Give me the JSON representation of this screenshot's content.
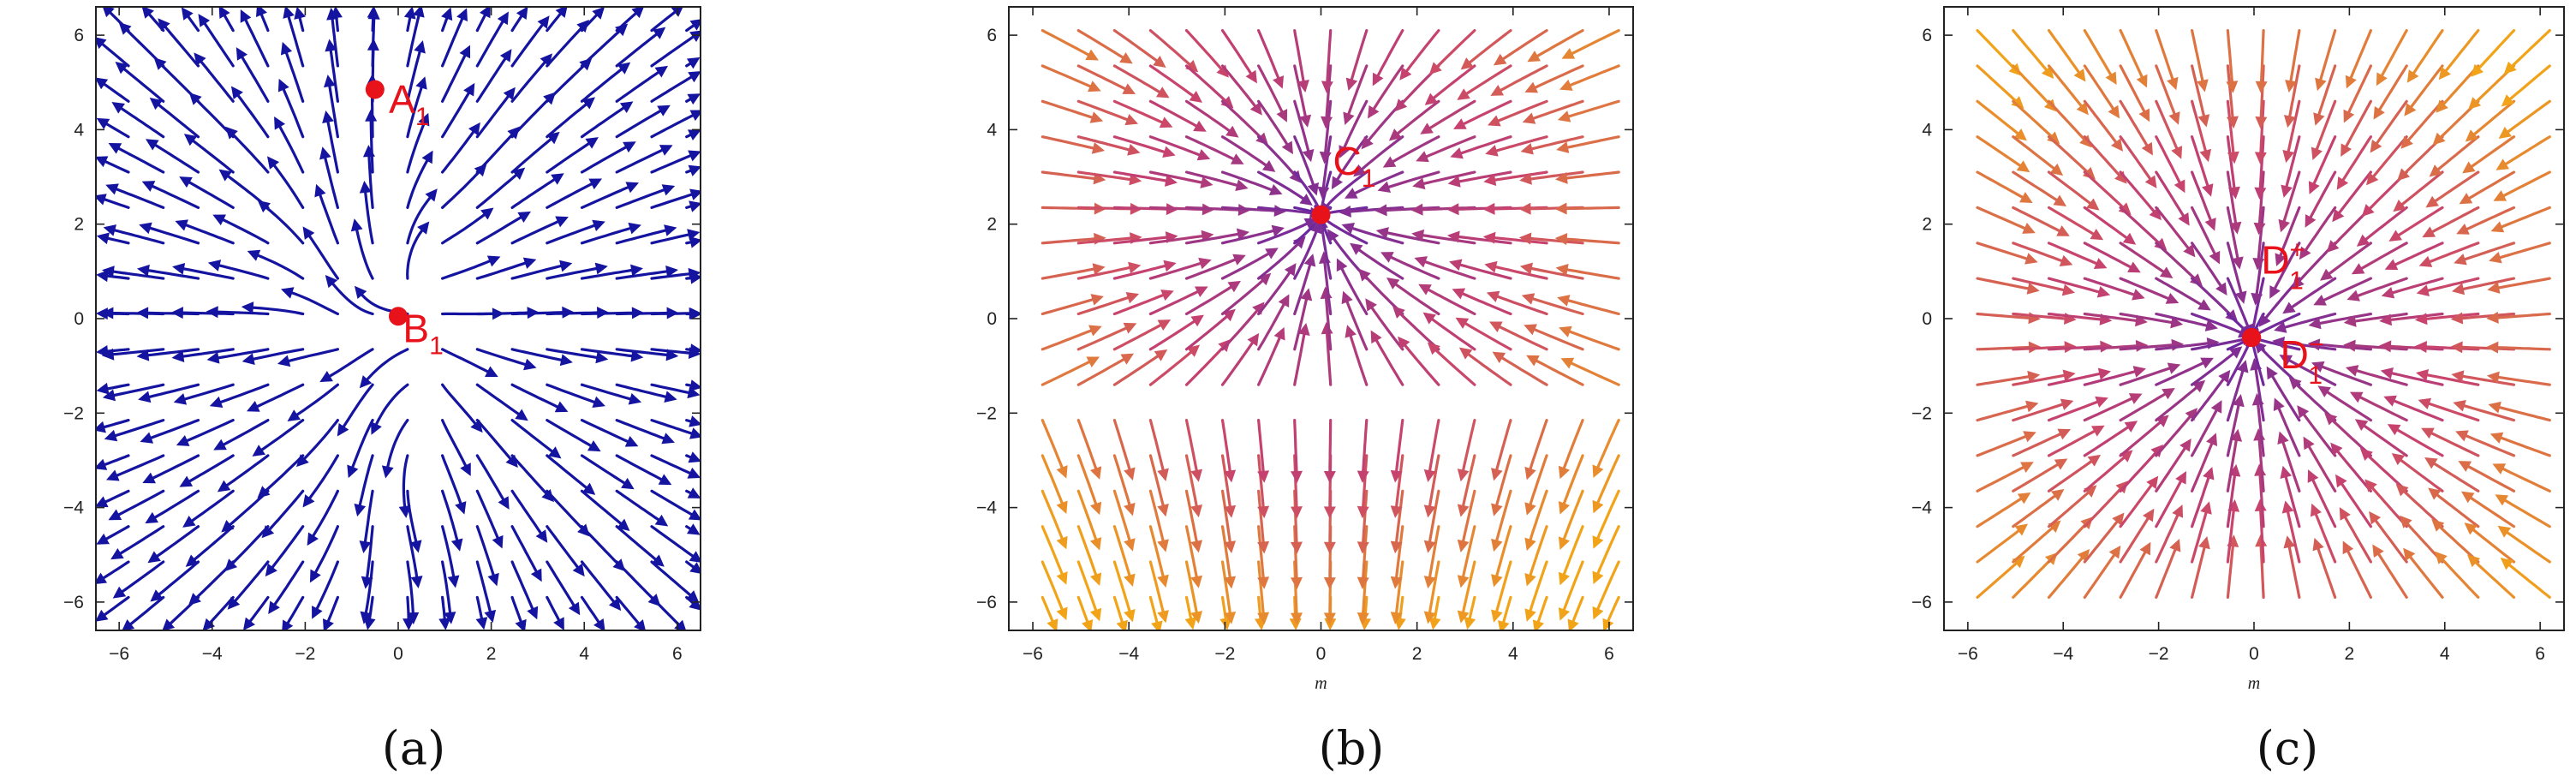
{
  "chart_data": [
    {
      "type": "streamplot",
      "caption": "(a)",
      "xlim": [
        -6.5,
        6.5
      ],
      "ylim": [
        -6.6,
        6.6
      ],
      "xticks": [
        -6,
        -4,
        -2,
        0,
        2,
        4,
        6
      ],
      "yticks": [
        -6,
        -4,
        -2,
        0,
        2,
        4,
        6
      ],
      "xlabel": "",
      "ylabel": "",
      "stream_color": "#1414a0",
      "color_mode": "solid",
      "field": "a",
      "points": [
        {
          "label": "A",
          "sub": "1",
          "sup": "",
          "x": -0.5,
          "y": 4.85,
          "label_dx": 0.3,
          "label_dy": -0.5
        },
        {
          "label": "B",
          "sub": "1",
          "sup": "",
          "x": 0.0,
          "y": 0.05,
          "label_dx": 0.1,
          "label_dy": -0.55
        }
      ]
    },
    {
      "type": "streamplot",
      "caption": "(b)",
      "xlim": [
        -6.5,
        6.5
      ],
      "ylim": [
        -6.6,
        6.6
      ],
      "xticks": [
        -6,
        -4,
        -2,
        0,
        2,
        4,
        6
      ],
      "yticks": [
        -6,
        -4,
        -2,
        0,
        2,
        4,
        6
      ],
      "xlabel": "m",
      "ylabel": "",
      "color_mode": "gradient",
      "field": "b",
      "points": [
        {
          "label": "C",
          "sub": "1",
          "sup": "",
          "x": 0.0,
          "y": 2.2,
          "label_dx": 0.25,
          "label_dy": 0.85
        }
      ]
    },
    {
      "type": "streamplot",
      "caption": "(c)",
      "xlim": [
        -6.5,
        6.5
      ],
      "ylim": [
        -6.6,
        6.6
      ],
      "xticks": [
        -6,
        -4,
        -2,
        0,
        2,
        4,
        6
      ],
      "yticks": [
        -6,
        -4,
        -2,
        0,
        2,
        4,
        6
      ],
      "xlabel": "m",
      "ylabel": "",
      "color_mode": "gradient",
      "field": "c",
      "points": [
        {
          "label": "D",
          "sub": "1",
          "sup": "+",
          "x": -0.05,
          "y": -0.4,
          "label_dx": 0.2,
          "label_dy": 1.35
        },
        {
          "label": "D",
          "sub": "1",
          "sup": "−",
          "x": -0.05,
          "y": -0.4,
          "label_dx": 0.6,
          "label_dy": -0.65
        }
      ]
    }
  ],
  "colors": {
    "point": "#e8121b",
    "gradient_low": "#5a23a8",
    "gradient_mid": "#c8426e",
    "gradient_high": "#f2a418"
  }
}
